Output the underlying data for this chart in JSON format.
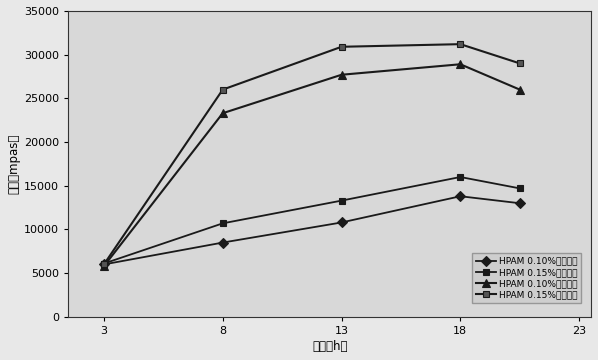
{
  "x": [
    3,
    8,
    13,
    18,
    20.5
  ],
  "series": [
    {
      "label": "HPAM 0.10%：盐水）",
      "values": [
        6000,
        8500,
        10800,
        13800,
        13000
      ],
      "marker": "D",
      "markersize": 5,
      "linewidth": 1.3,
      "color": "#1a1a1a",
      "markerfacecolor": "#1a1a1a"
    },
    {
      "label": "HPAM 0.15%：盐水）",
      "values": [
        6100,
        10700,
        13300,
        16000,
        14700
      ],
      "marker": "s",
      "markersize": 5,
      "linewidth": 1.3,
      "color": "#1a1a1a",
      "markerfacecolor": "#1a1a1a"
    },
    {
      "label": "HPAM 0.10%：清水）",
      "values": [
        5800,
        23300,
        27700,
        28900,
        26000
      ],
      "marker": "^",
      "markersize": 6,
      "linewidth": 1.5,
      "color": "#1a1a1a",
      "markerfacecolor": "#1a1a1a"
    },
    {
      "label": "HPAM 0.15%：清水）",
      "values": [
        6000,
        26000,
        30900,
        31200,
        29000
      ],
      "marker": "s",
      "markersize": 5,
      "linewidth": 1.5,
      "color": "#1a1a1a",
      "markerfacecolor": "#555555"
    }
  ],
  "xlabel": "时间（h）",
  "ylabel": "弹性（mpas）",
  "xlim": [
    1.5,
    23.5
  ],
  "ylim": [
    0,
    35000
  ],
  "xticks": [
    3,
    8,
    13,
    18,
    23
  ],
  "yticks": [
    0,
    5000,
    10000,
    15000,
    20000,
    25000,
    30000,
    35000
  ],
  "background_color": "#e8e8e8",
  "plot_bg_color": "#d8d8d8",
  "legend_fontsize": 6.5,
  "axis_fontsize": 8.5,
  "tick_fontsize": 8
}
